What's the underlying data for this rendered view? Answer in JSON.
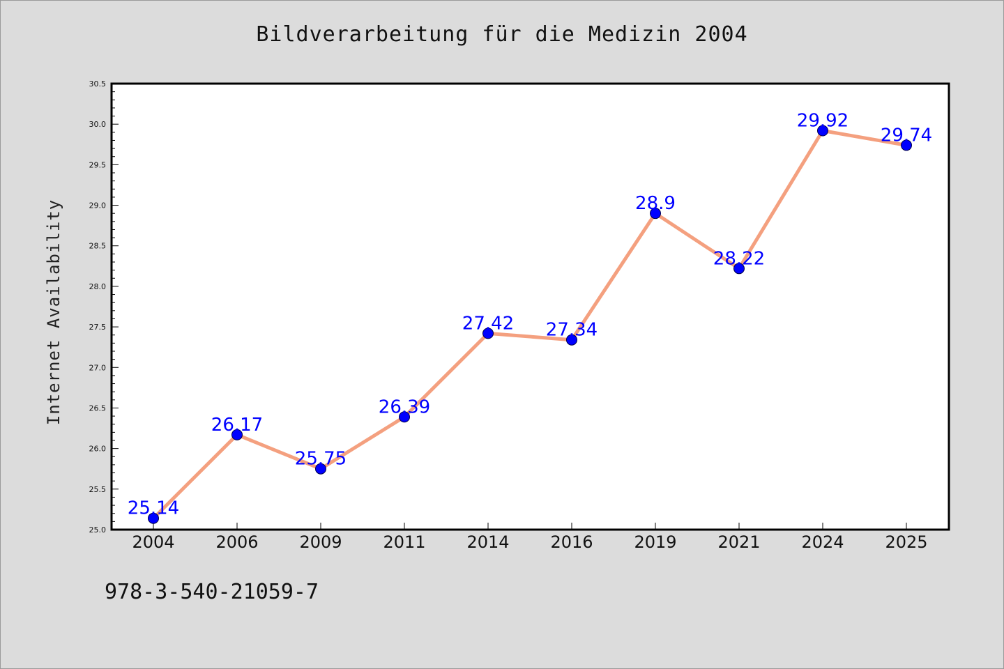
{
  "chart_data": {
    "type": "line",
    "title": "Bildverarbeitung für die Medizin 2004",
    "xlabel": "",
    "ylabel": "Internet Availability",
    "categories": [
      "2004",
      "2006",
      "2009",
      "2011",
      "2014",
      "2016",
      "2019",
      "2021",
      "2024",
      "2025"
    ],
    "series": [
      {
        "values": [
          25.14,
          26.17,
          25.75,
          26.39,
          27.42,
          27.34,
          28.9,
          28.22,
          29.92,
          29.74
        ],
        "data_labels": [
          "25.14",
          "26.17",
          "25.75",
          "26.39",
          "27.42",
          "27.34",
          "28.9",
          "28.22",
          "29.92",
          "29.74"
        ]
      }
    ],
    "ylim": [
      25.0,
      30.5
    ],
    "yticks": [
      "25.0",
      "25.5",
      "26.0",
      "26.5",
      "27.0",
      "27.5",
      "28.0",
      "28.5",
      "29.0",
      "29.5",
      "30.0",
      "30.5"
    ],
    "grid": false,
    "legend": "none",
    "line_color": "#f4a07f",
    "marker_color": "#0000ff"
  },
  "footnote": "978-3-540-21059-7"
}
